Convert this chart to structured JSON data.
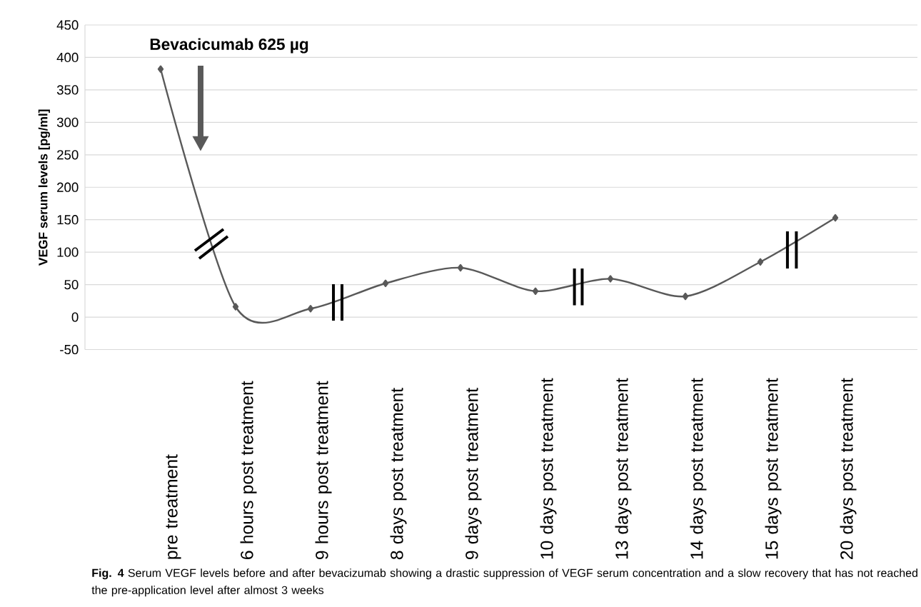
{
  "chart_data": {
    "type": "line",
    "ylabel": "VEGF serum levels [pg/ml]",
    "categories": [
      "pre treatment",
      "6 hours post treatment",
      "9 hours post treatment",
      "8 days post treatment",
      "9 days post treatment",
      "10 days post treatment",
      "13 days post treatment",
      "14 days post treatment",
      "15 days post treatment",
      "20 days post treatment"
    ],
    "series": [
      {
        "color": "#595959",
        "values": [
          382,
          16,
          13,
          52,
          76,
          40,
          59,
          32,
          85,
          153
        ]
      }
    ],
    "ylim": [
      -50,
      450
    ],
    "yticks": [
      -50,
      0,
      50,
      100,
      150,
      200,
      250,
      300,
      350,
      400,
      450
    ],
    "grid": "y",
    "marker": "diamond",
    "line_style": "solid",
    "annotations": [
      "Bevacicumab 625 µg",
      "**Fig. 4** Serum VEGF levels before and after bevacizumab showing a drastic suppression of VEGF serum concentration and a slow recovery that has not reached the pre-application level after almost 3 weeks"
    ]
  }
}
